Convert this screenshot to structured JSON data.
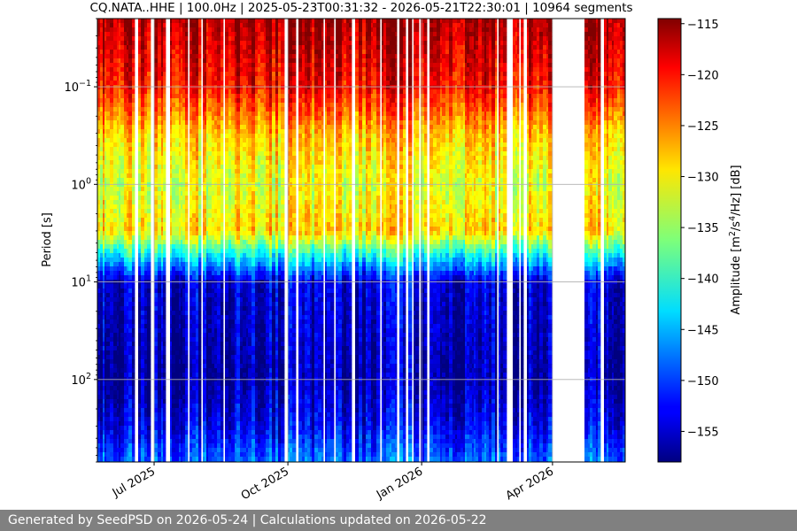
{
  "chart_data": {
    "type": "heatmap",
    "title": "CQ.NATA..HHE | 100.0Hz | 2025-05-23T00:31:32 - 2026-05-21T22:30:01 | 10964 segments",
    "xlabel": "",
    "ylabel": "Period [s]",
    "colorbar_label": "Amplitude [m^2/s^4/Hz] [dB]",
    "colormap": "jet",
    "y_scale": "log",
    "y_inverted": true,
    "ylim": [
      0.02,
      700
    ],
    "y_ticks": [
      {
        "value": 0.1,
        "base": "10",
        "exp": "−1"
      },
      {
        "value": 1,
        "base": "10",
        "exp": "0"
      },
      {
        "value": 10,
        "base": "10",
        "exp": "1"
      },
      {
        "value": 100,
        "base": "10",
        "exp": "2"
      }
    ],
    "xlim": [
      "2025-05-23",
      "2026-05-21"
    ],
    "x_ticks": [
      {
        "date": "2025-07-01",
        "label": "Jul 2025"
      },
      {
        "date": "2025-10-01",
        "label": "Oct 2025"
      },
      {
        "date": "2026-01-01",
        "label": "Jan 2026"
      },
      {
        "date": "2026-04-01",
        "label": "Apr 2026"
      }
    ],
    "clim": [
      -158,
      -114.5
    ],
    "colorbar_ticks": [
      -115,
      -120,
      -125,
      -130,
      -135,
      -140,
      -145,
      -150,
      -155
    ],
    "data_gaps": [
      [
        "2026-04-02",
        "2026-04-22"
      ]
    ],
    "grid": true,
    "psd_profile_db": {
      "period": [
        0.02,
        0.1,
        0.3,
        1,
        3,
        5,
        10,
        100,
        300,
        700
      ],
      "amplitude": [
        -116,
        -120,
        -128,
        -132,
        -129,
        -140,
        -154,
        -156,
        -153,
        -148
      ]
    }
  },
  "footer": {
    "text": "Generated by SeedPSD on 2026-05-24 | Calculations updated on 2026-05-22"
  }
}
